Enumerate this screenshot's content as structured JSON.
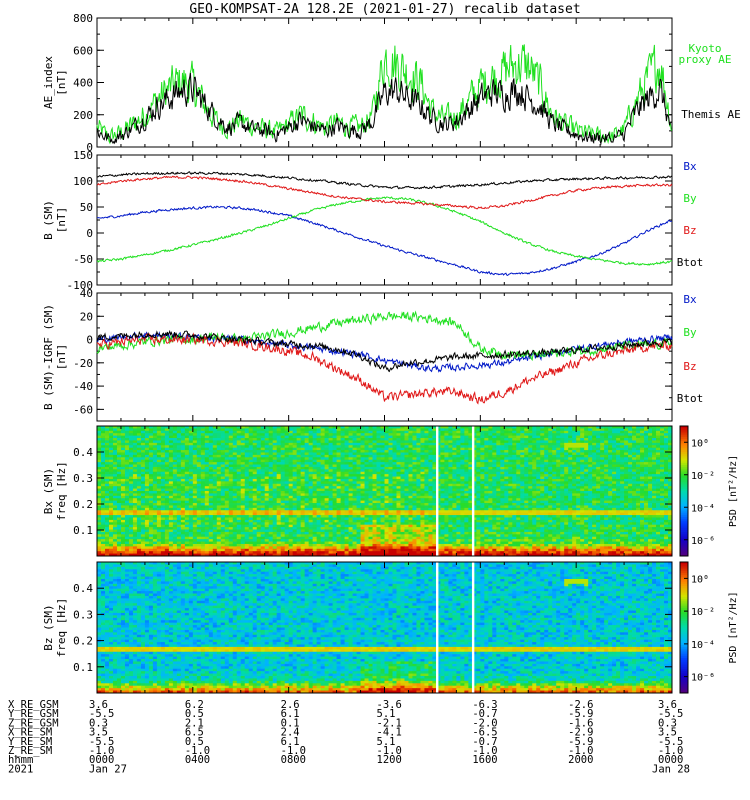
{
  "title": "GEO-KOMPSAT-2A 128.2E (2021-01-27) recalib dataset",
  "colors": {
    "black": "#000000",
    "blue": "#0018c8",
    "green": "#20e020",
    "red": "#e01818"
  },
  "x_axis": {
    "ticks": [
      "0000",
      "0400",
      "0800",
      "1200",
      "1600",
      "2000",
      "0000"
    ],
    "date_label_left": "Jan 27",
    "date_label_right": "Jan 28",
    "year": "2021",
    "range_hours": [
      0,
      24
    ]
  },
  "ephemeris": {
    "rows": [
      {
        "label": "X_RE_GSM",
        "values": [
          "3.6",
          "6.2",
          "2.6",
          "-3.6",
          "-6.3",
          "-2.6",
          "3.6"
        ]
      },
      {
        "label": "Y_RE_GSM",
        "values": [
          "-5.5",
          "0.5",
          "6.1",
          "5.1",
          "-0.7",
          "-5.9",
          "-5.5"
        ]
      },
      {
        "label": "Z_RE_GSM",
        "values": [
          "0.3",
          "2.1",
          "0.1",
          "-2.1",
          "-2.0",
          "-1.6",
          "0.3"
        ]
      },
      {
        "label": "X_RE_SM",
        "values": [
          "3.5",
          "6.5",
          "2.4",
          "-4.1",
          "-6.5",
          "-2.9",
          "3.5"
        ]
      },
      {
        "label": "Y_RE_SM",
        "values": [
          "-5.5",
          "0.5",
          "6.1",
          "5.1",
          "-0.7",
          "-5.9",
          "-5.5"
        ]
      },
      {
        "label": "Z_RE_SM",
        "values": [
          "-1.0",
          "-1.0",
          "-1.0",
          "-1.0",
          "-1.0",
          "-1.0",
          "-1.0"
        ]
      },
      {
        "label": "hhmm",
        "values": [
          "0000",
          "0400",
          "0800",
          "1200",
          "1600",
          "2000",
          "0000"
        ]
      }
    ]
  },
  "chart_data": [
    {
      "type": "line",
      "ylabel": "AE_index",
      "yunit": "[nT]",
      "ylim": [
        0,
        800
      ],
      "yticks": [
        0,
        200,
        400,
        600,
        800
      ],
      "legend": [
        "Kyoto proxy AE",
        "Themis AE"
      ],
      "series": [
        {
          "name": "Kyoto proxy AE",
          "color": "green",
          "x": [
            0,
            0.5,
            1,
            1.5,
            2,
            2.5,
            3,
            3.5,
            4,
            4.5,
            5,
            5.5,
            6,
            6.5,
            7,
            7.5,
            8,
            8.5,
            9,
            9.5,
            10,
            10.5,
            11,
            11.5,
            12,
            12.5,
            13,
            13.5,
            14,
            14.5,
            15,
            15.5,
            16,
            16.5,
            17,
            17.5,
            18,
            18.5,
            19,
            19.5,
            20,
            20.5,
            21,
            21.5,
            22,
            22.5,
            23,
            23.5,
            24
          ],
          "y": [
            120,
            60,
            90,
            140,
            200,
            290,
            360,
            410,
            380,
            260,
            160,
            120,
            170,
            130,
            110,
            90,
            140,
            200,
            160,
            120,
            150,
            130,
            120,
            200,
            560,
            520,
            460,
            400,
            220,
            170,
            190,
            280,
            380,
            430,
            470,
            520,
            500,
            380,
            200,
            140,
            100,
            80,
            70,
            60,
            110,
            280,
            420,
            540,
            120
          ]
        },
        {
          "name": "Themis AE",
          "color": "black",
          "x": [
            0,
            0.5,
            1,
            1.5,
            2,
            2.5,
            3,
            3.5,
            4,
            4.5,
            5,
            5.5,
            6,
            6.5,
            7,
            7.5,
            8,
            8.5,
            9,
            9.5,
            10,
            10.5,
            11,
            11.5,
            12,
            12.5,
            13,
            13.5,
            14,
            14.5,
            15,
            15.5,
            16,
            16.5,
            17,
            17.5,
            18,
            18.5,
            19,
            19.5,
            20,
            20.5,
            21,
            21.5,
            22,
            22.5,
            23,
            23.5,
            24
          ],
          "y": [
            100,
            50,
            70,
            120,
            180,
            250,
            300,
            350,
            360,
            270,
            180,
            120,
            150,
            110,
            100,
            80,
            120,
            170,
            130,
            100,
            130,
            110,
            100,
            160,
            340,
            350,
            300,
            260,
            180,
            140,
            160,
            230,
            300,
            340,
            330,
            360,
            310,
            250,
            150,
            110,
            80,
            60,
            60,
            50,
            80,
            220,
            300,
            360,
            90
          ]
        }
      ]
    },
    {
      "type": "line",
      "ylabel": "B (SM)",
      "yunit": "[nT]",
      "ylim": [
        -100,
        150
      ],
      "yticks": [
        -100,
        -50,
        0,
        50,
        100,
        150
      ],
      "legend": [
        "Bx",
        "By",
        "Bz",
        "Btot"
      ],
      "series": [
        {
          "name": "Bx",
          "color": "blue",
          "x": [
            0,
            1,
            2,
            3,
            4,
            5,
            6,
            7,
            8,
            9,
            10,
            11,
            12,
            13,
            14,
            15,
            16,
            17,
            18,
            19,
            20,
            21,
            22,
            23,
            24
          ],
          "y": [
            28,
            33,
            40,
            45,
            48,
            50,
            48,
            42,
            33,
            20,
            5,
            -10,
            -25,
            -38,
            -50,
            -62,
            -75,
            -80,
            -77,
            -68,
            -55,
            -40,
            -20,
            5,
            25
          ]
        },
        {
          "name": "By",
          "color": "green",
          "x": [
            0,
            1,
            2,
            3,
            4,
            5,
            6,
            7,
            8,
            9,
            10,
            11,
            12,
            13,
            14,
            15,
            16,
            17,
            18,
            19,
            20,
            21,
            22,
            23,
            24
          ],
          "y": [
            -55,
            -50,
            -42,
            -33,
            -23,
            -12,
            0,
            13,
            28,
            43,
            55,
            63,
            68,
            65,
            55,
            40,
            22,
            0,
            -20,
            -35,
            -45,
            -52,
            -58,
            -60,
            -55
          ]
        },
        {
          "name": "Bz",
          "color": "red",
          "x": [
            0,
            1,
            2,
            3,
            4,
            5,
            6,
            7,
            8,
            9,
            10,
            11,
            12,
            13,
            14,
            15,
            16,
            17,
            18,
            19,
            20,
            21,
            22,
            23,
            24
          ],
          "y": [
            92,
            100,
            104,
            107,
            107,
            104,
            100,
            93,
            85,
            78,
            70,
            65,
            60,
            58,
            55,
            52,
            48,
            52,
            62,
            72,
            82,
            87,
            90,
            92,
            92
          ]
        },
        {
          "name": "Btot",
          "color": "black",
          "x": [
            0,
            1,
            2,
            3,
            4,
            5,
            6,
            7,
            8,
            9,
            10,
            11,
            12,
            13,
            14,
            15,
            16,
            17,
            18,
            19,
            20,
            21,
            22,
            23,
            24
          ],
          "y": [
            108,
            112,
            114,
            115,
            115,
            115,
            113,
            110,
            106,
            102,
            97,
            92,
            88,
            87,
            88,
            90,
            93,
            96,
            100,
            102,
            104,
            105,
            106,
            107,
            108
          ]
        }
      ]
    },
    {
      "type": "line",
      "ylabel": "B (SM)-IGRF (SM)",
      "yunit": "[nT]",
      "ylim": [
        -70,
        40
      ],
      "yticks": [
        -60,
        -40,
        -20,
        0,
        20,
        40
      ],
      "legend": [
        "Bx",
        "By",
        "Bz",
        "Btot"
      ],
      "series": [
        {
          "name": "Bx",
          "color": "blue",
          "x": [
            0,
            1,
            2,
            3,
            4,
            5,
            6,
            7,
            8,
            9,
            10,
            11,
            12,
            13,
            14,
            15,
            16,
            17,
            18,
            19,
            20,
            21,
            22,
            23,
            24
          ],
          "y": [
            0,
            2,
            4,
            3,
            2,
            1,
            0,
            -3,
            -5,
            -7,
            -10,
            -13,
            -18,
            -22,
            -25,
            -24,
            -22,
            -20,
            -16,
            -12,
            -8,
            -5,
            -2,
            0,
            2
          ]
        },
        {
          "name": "By",
          "color": "green",
          "x": [
            0,
            1,
            2,
            3,
            4,
            5,
            6,
            7,
            8,
            9,
            10,
            11,
            12,
            13,
            14,
            15,
            16,
            17,
            18,
            19,
            20,
            21,
            22,
            23,
            24
          ],
          "y": [
            -8,
            -5,
            -2,
            0,
            0,
            2,
            0,
            3,
            6,
            10,
            14,
            17,
            20,
            20,
            18,
            14,
            -8,
            -12,
            -14,
            -12,
            -10,
            -8,
            -6,
            -5,
            -3
          ]
        },
        {
          "name": "Bz",
          "color": "red",
          "x": [
            0,
            1,
            2,
            3,
            4,
            5,
            6,
            7,
            8,
            9,
            10,
            11,
            12,
            13,
            14,
            15,
            16,
            17,
            18,
            19,
            20,
            21,
            22,
            23,
            24
          ],
          "y": [
            -5,
            -2,
            0,
            0,
            0,
            -1,
            -3,
            -6,
            -10,
            -15,
            -25,
            -35,
            -50,
            -48,
            -45,
            -45,
            -52,
            -45,
            -35,
            -28,
            -20,
            -14,
            -10,
            -6,
            -5
          ]
        },
        {
          "name": "Btot",
          "color": "black",
          "x": [
            0,
            1,
            2,
            3,
            4,
            5,
            6,
            7,
            8,
            9,
            10,
            11,
            12,
            13,
            14,
            15,
            16,
            17,
            18,
            19,
            20,
            21,
            22,
            23,
            24
          ],
          "y": [
            2,
            3,
            5,
            5,
            4,
            2,
            0,
            -2,
            -4,
            -5,
            -8,
            -14,
            -25,
            -20,
            -18,
            -15,
            -14,
            -13,
            -12,
            -11,
            -9,
            -7,
            -5,
            -3,
            -2
          ]
        }
      ]
    },
    {
      "type": "heatmap",
      "ylabel": "Bx (SM)",
      "yunit": "freq [Hz]",
      "ylim": [
        0,
        0.5
      ],
      "yticks": [
        0.1,
        0.2,
        0.3,
        0.4
      ],
      "colorbar": {
        "label": "PSD [nT²/Hz]",
        "ticks": [
          "10⁰",
          "10⁻²",
          "10⁻⁴",
          "10⁻⁶"
        ],
        "range_log10": [
          -7,
          1
        ]
      },
      "features": {
        "horizontal_line_hz": 0.167,
        "gap_hours": [
          14.2,
          15.7
        ]
      }
    },
    {
      "type": "heatmap",
      "ylabel": "Bz (SM)",
      "yunit": "freq [Hz]",
      "ylim": [
        0,
        0.5
      ],
      "yticks": [
        0.1,
        0.2,
        0.3,
        0.4
      ],
      "colorbar": {
        "label": "PSD [nT²/Hz]",
        "ticks": [
          "10⁰",
          "10⁻²",
          "10⁻⁴",
          "10⁻⁶"
        ],
        "range_log10": [
          -7,
          1
        ]
      },
      "features": {
        "horizontal_line_hz": 0.167,
        "gap_hours": [
          14.2,
          15.7
        ]
      }
    }
  ]
}
